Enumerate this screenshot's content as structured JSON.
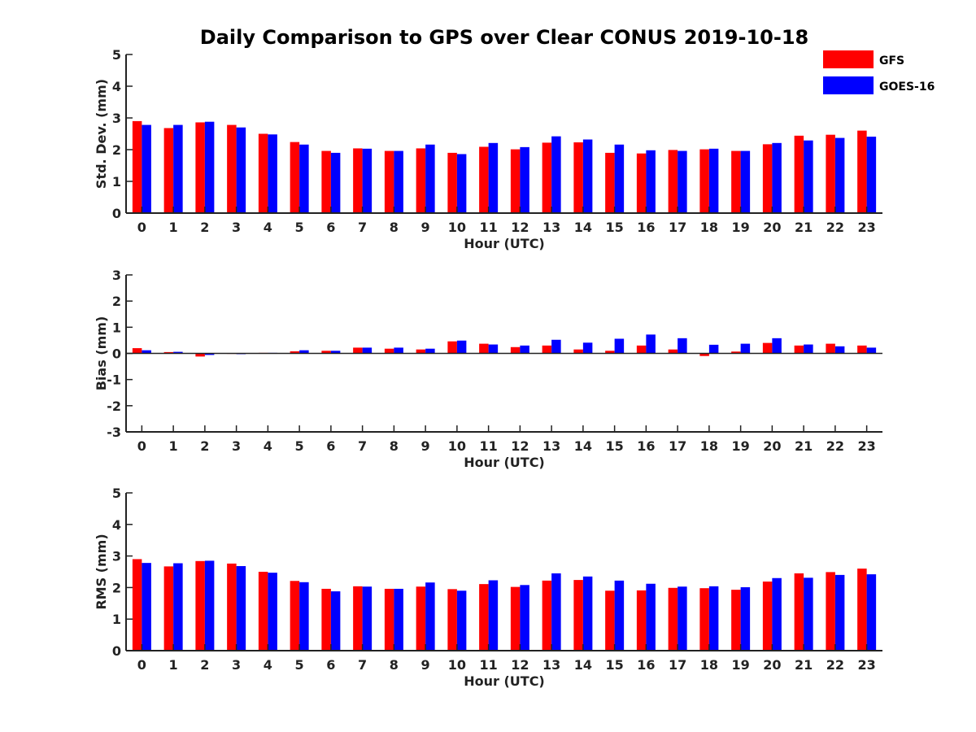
{
  "chart_data": {
    "type": "bar",
    "title": "Daily Comparison to GPS over Clear CONUS 2019-10-18",
    "categories": [
      "0",
      "1",
      "2",
      "3",
      "4",
      "5",
      "6",
      "7",
      "8",
      "9",
      "10",
      "11",
      "12",
      "13",
      "14",
      "15",
      "16",
      "17",
      "18",
      "19",
      "20",
      "21",
      "22",
      "23"
    ],
    "legend": {
      "placement": "top-right",
      "entries": [
        {
          "name": "GFS",
          "color": "#ff0000"
        },
        {
          "name": "GOES-16",
          "color": "#0000ff"
        }
      ]
    },
    "panels": [
      {
        "id": "std",
        "xlabel": "Hour (UTC)",
        "ylabel": "Std. Dev. (mm)",
        "ylim": [
          0,
          5
        ],
        "yticks": [
          "0",
          "1",
          "2",
          "3",
          "4",
          "5"
        ],
        "series": [
          {
            "name": "GFS",
            "color": "#ff0000",
            "values": [
              2.9,
              2.68,
              2.86,
              2.78,
              2.5,
              2.24,
              1.96,
              2.04,
              1.96,
              2.04,
              1.9,
              2.09,
              2.01,
              2.22,
              2.23,
              1.9,
              1.88,
              1.99,
              2.01,
              1.96,
              2.17,
              2.44,
              2.47,
              2.6
            ]
          },
          {
            "name": "GOES-16",
            "color": "#0000ff",
            "values": [
              2.78,
              2.78,
              2.88,
              2.7,
              2.48,
              2.16,
              1.9,
              2.03,
              1.96,
              2.16,
              1.86,
              2.21,
              2.08,
              2.42,
              2.32,
              2.16,
              1.98,
              1.96,
              2.03,
              1.96,
              2.21,
              2.29,
              2.37,
              2.41
            ]
          }
        ]
      },
      {
        "id": "bias",
        "xlabel": "Hour (UTC)",
        "ylabel": "Bias (mm)",
        "ylim": [
          -3,
          3
        ],
        "yticks": [
          "-3",
          "-2",
          "-1",
          "0",
          "1",
          "2",
          "3"
        ],
        "series": [
          {
            "name": "GFS",
            "color": "#ff0000",
            "values": [
              0.2,
              0.05,
              -0.12,
              0.0,
              0.02,
              0.08,
              0.1,
              0.22,
              0.18,
              0.15,
              0.46,
              0.37,
              0.24,
              0.3,
              0.15,
              0.1,
              0.3,
              0.15,
              -0.1,
              0.07,
              0.4,
              0.3,
              0.37,
              0.3
            ]
          },
          {
            "name": "GOES-16",
            "color": "#0000ff",
            "values": [
              0.12,
              0.06,
              -0.06,
              -0.03,
              0.02,
              0.12,
              0.1,
              0.22,
              0.22,
              0.18,
              0.49,
              0.34,
              0.3,
              0.52,
              0.41,
              0.56,
              0.72,
              0.58,
              0.33,
              0.37,
              0.58,
              0.34,
              0.27,
              0.22
            ]
          }
        ]
      },
      {
        "id": "rms",
        "xlabel": "Hour (UTC)",
        "ylabel": "RMS (mm)",
        "ylim": [
          0,
          5
        ],
        "yticks": [
          "0",
          "1",
          "2",
          "3",
          "4",
          "5"
        ],
        "series": [
          {
            "name": "GFS",
            "color": "#ff0000",
            "values": [
              2.9,
              2.67,
              2.84,
              2.76,
              2.5,
              2.21,
              1.96,
              2.04,
              1.96,
              2.03,
              1.95,
              2.11,
              2.02,
              2.22,
              2.24,
              1.9,
              1.91,
              1.99,
              1.98,
              1.93,
              2.19,
              2.45,
              2.49,
              2.6
            ]
          },
          {
            "name": "GOES-16",
            "color": "#0000ff",
            "values": [
              2.78,
              2.77,
              2.85,
              2.68,
              2.47,
              2.17,
              1.88,
              2.03,
              1.96,
              2.16,
              1.9,
              2.23,
              2.08,
              2.45,
              2.35,
              2.22,
              2.12,
              2.03,
              2.04,
              2.01,
              2.3,
              2.31,
              2.4,
              2.42
            ]
          }
        ]
      }
    ]
  }
}
